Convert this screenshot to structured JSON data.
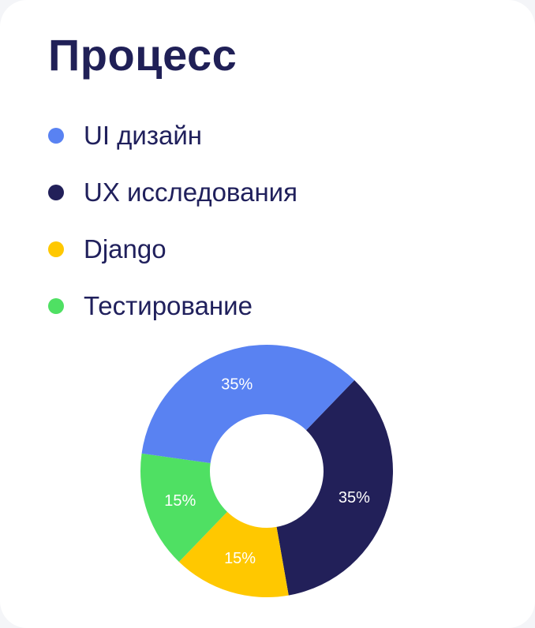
{
  "title": "Процесс",
  "chart_data": {
    "type": "pie",
    "categories": [
      "UI дизайн",
      "UX исследования",
      "Django",
      "Тестирование"
    ],
    "values": [
      35,
      35,
      15,
      15
    ],
    "labels": [
      "35%",
      "35%",
      "15%",
      "15%"
    ],
    "colors": [
      "#5982f2",
      "#222059",
      "#ffc800",
      "#4fe063"
    ],
    "donut": true,
    "legend_position": "top-left",
    "title": "Процесс"
  }
}
